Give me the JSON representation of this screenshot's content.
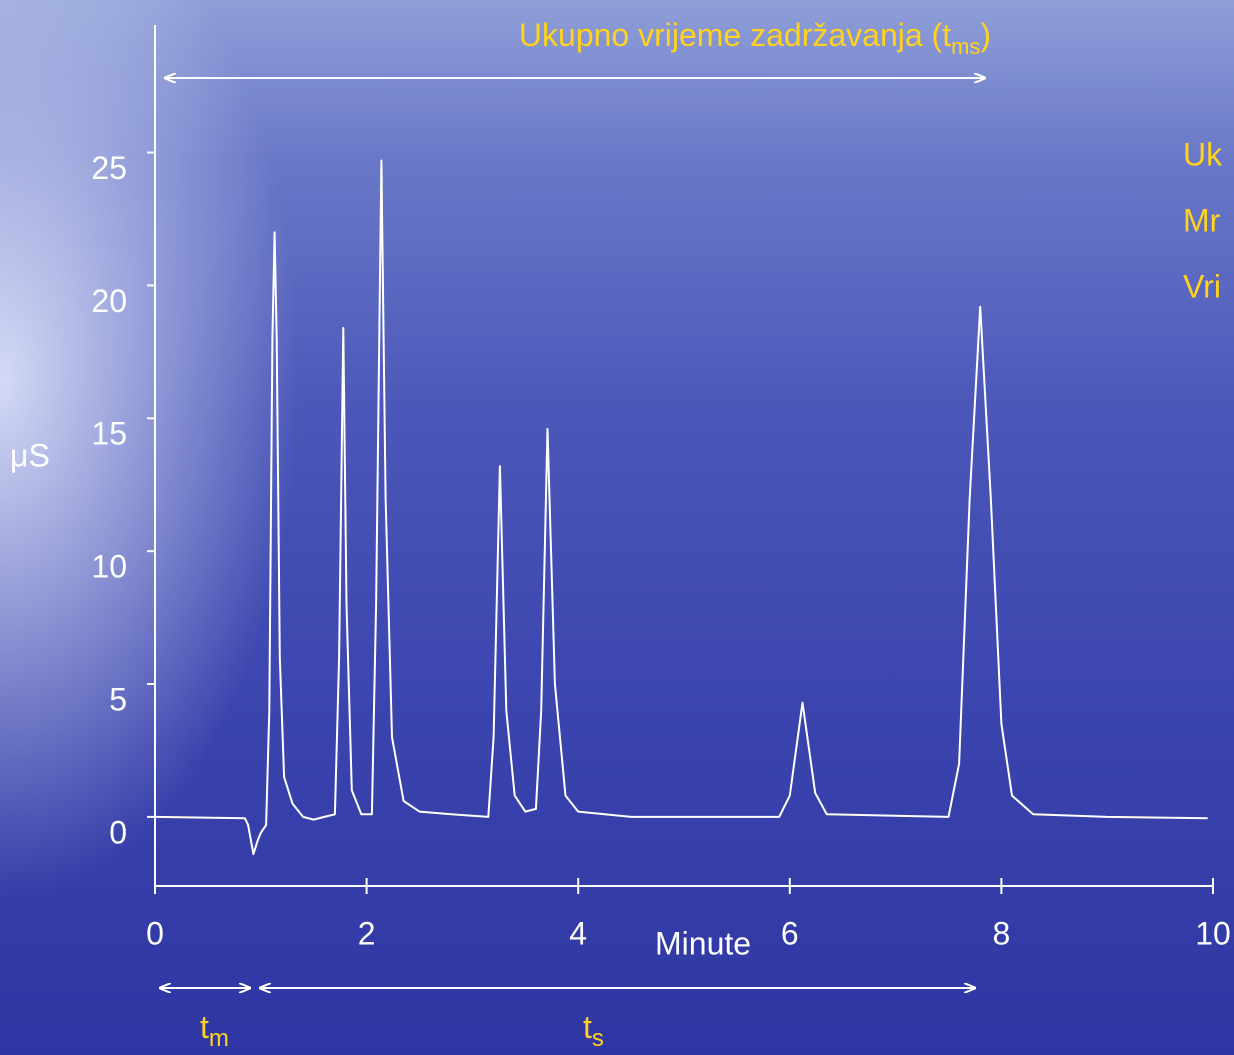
{
  "chart_data": {
    "type": "line",
    "title": {
      "text": "Ukupno vrijeme zadržavanja (t",
      "sub": "ms",
      "close": ")"
    },
    "x_label": "Minute",
    "y_label": "μS",
    "side_text": [
      "Uk",
      "Mr",
      "Vri"
    ],
    "tm_label": {
      "text": "t",
      "sub": "m"
    },
    "ts_label": {
      "text": "t",
      "sub": "s"
    },
    "xlim": [
      0,
      10
    ],
    "ylim": [
      -2.6,
      29.8
    ],
    "xticks": [
      0,
      2,
      4,
      6,
      8,
      10
    ],
    "yticks": [
      0,
      5,
      10,
      15,
      20,
      25
    ],
    "series": [
      {
        "color": "#ffffff",
        "x": [
          0,
          0.85,
          0.88,
          0.93,
          0.97,
          1.0,
          1.05,
          1.08,
          1.11,
          1.13,
          1.15,
          1.18,
          1.22,
          1.3,
          1.4,
          1.5,
          1.6,
          1.7,
          1.74,
          1.78,
          1.81,
          1.86,
          1.95,
          2.05,
          2.09,
          2.14,
          2.18,
          2.24,
          2.35,
          2.5,
          2.8,
          3.15,
          3.2,
          3.26,
          3.32,
          3.4,
          3.5,
          3.6,
          3.65,
          3.71,
          3.78,
          3.88,
          4.0,
          4.5,
          5.9,
          6.0,
          6.12,
          6.24,
          6.35,
          7.5,
          7.6,
          7.7,
          7.8,
          7.9,
          8.0,
          8.1,
          8.3,
          9.0,
          9.95
        ],
        "values": [
          0,
          -0.05,
          -0.3,
          -1.4,
          -0.9,
          -0.6,
          -0.3,
          4,
          18,
          22,
          18,
          6,
          1.5,
          0.5,
          0,
          -0.1,
          0,
          0.1,
          6,
          18.4,
          8,
          1,
          0.1,
          0.1,
          8,
          24.7,
          12,
          3,
          0.6,
          0.2,
          0.1,
          0,
          3,
          13.2,
          4,
          0.8,
          0.2,
          0.3,
          4,
          14.6,
          5,
          0.8,
          0.2,
          0,
          0,
          0.8,
          4.3,
          0.9,
          0.1,
          0,
          2,
          12,
          19.2,
          12,
          3.5,
          0.8,
          0.1,
          0,
          -0.05
        ]
      }
    ]
  }
}
